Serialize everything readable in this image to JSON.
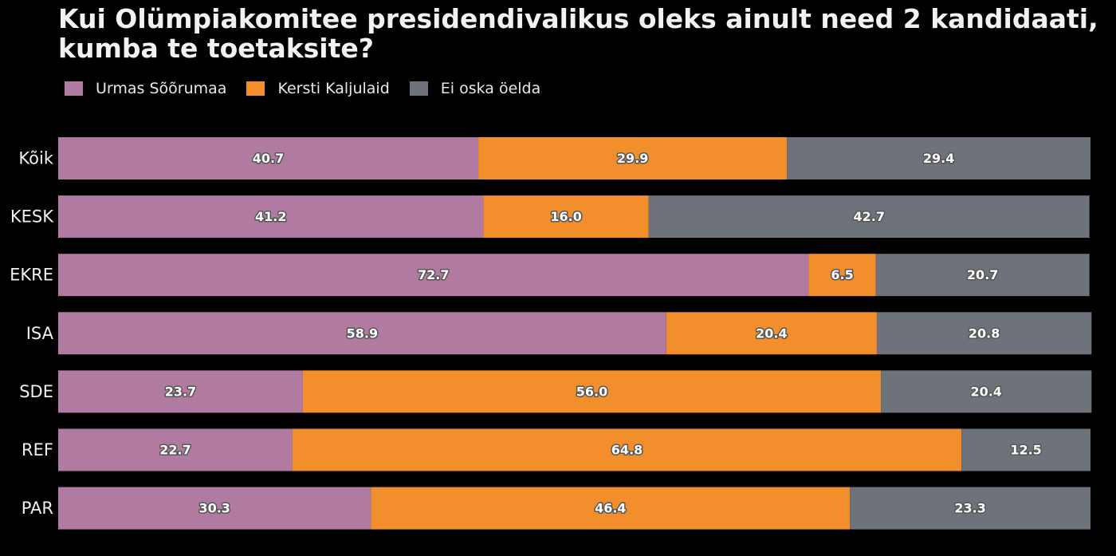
{
  "chart_data": {
    "type": "bar",
    "orientation": "horizontal",
    "stacked": true,
    "title_lines": [
      "Kui Olümpiakomitee presidendivalikus oleks ainult need 2 kandidaati,",
      "kumba te toetaksite?"
    ],
    "categories": [
      "Kõik",
      "KESK",
      "EKRE",
      "ISA",
      "SDE",
      "REF",
      "PAR"
    ],
    "series": [
      {
        "name": "Urmas Sõõrumaa",
        "color": "#b07aa1",
        "values": [
          40.7,
          41.2,
          72.7,
          58.9,
          23.7,
          22.7,
          30.3
        ]
      },
      {
        "name": "Kersti Kaljulaid",
        "color": "#f28e2b",
        "values": [
          29.9,
          16.0,
          6.5,
          20.4,
          56.0,
          64.8,
          46.4
        ]
      },
      {
        "name": "Ei oska öelda",
        "color": "#6e737b",
        "values": [
          29.4,
          42.7,
          20.7,
          20.8,
          20.4,
          12.5,
          23.3
        ]
      }
    ],
    "xlim": [
      0,
      100
    ],
    "legend_position": "top-left",
    "grid": false
  }
}
